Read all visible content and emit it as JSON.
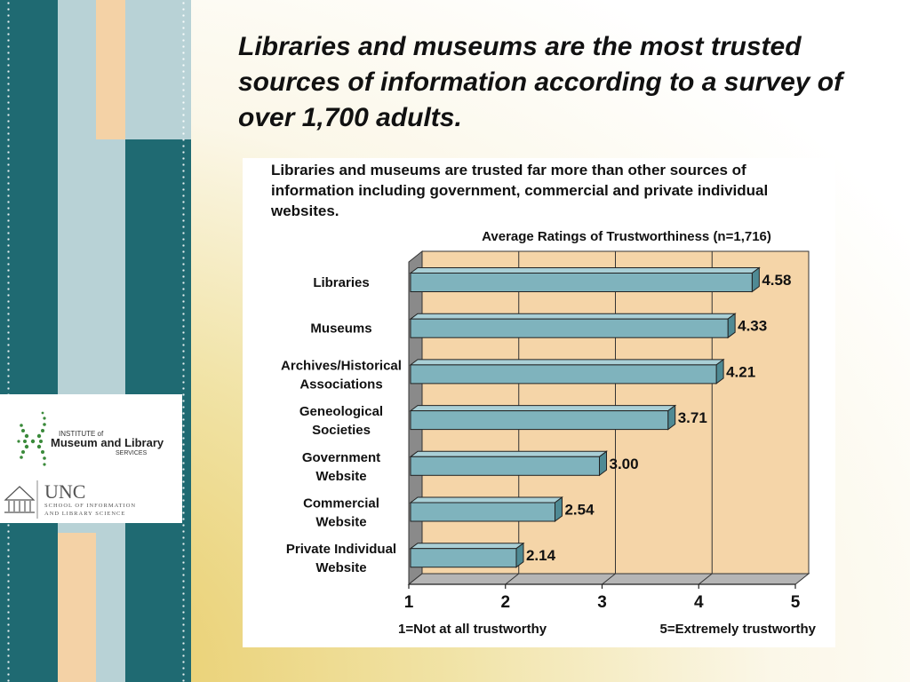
{
  "slide": {
    "title": "Libraries and museums are the most trusted sources of information according to a survey of over 1,700 adults."
  },
  "figure": {
    "caption": "Libraries and museums are trusted far more than other sources of information including government, commercial and private individual websites."
  },
  "logos": {
    "imls": {
      "line1": "INSTITUTE of",
      "line2": "Museum and Library",
      "line3": "SERVICES"
    },
    "unc": {
      "name": "UNC",
      "line1": "SCHOOL OF INFORMATION",
      "line2": "AND LIBRARY SCIENCE"
    }
  },
  "colors": {
    "teal": "#1f6a72",
    "light_blue": "#b8d2d6",
    "peach": "#f4d2a6",
    "plot_bg": "#f5d5a8",
    "bar": "#7fb3bd"
  },
  "chart_data": {
    "type": "bar",
    "orientation": "horizontal",
    "title": "Average Ratings of Trustworthiness (n=1,716)",
    "categories": [
      [
        "Libraries"
      ],
      [
        "Museums"
      ],
      [
        "Archives/Historical",
        "Associations"
      ],
      [
        "Geneological",
        "Societies"
      ],
      [
        "Government",
        "Website"
      ],
      [
        "Commercial",
        "Website"
      ],
      [
        "Private Individual",
        "Website"
      ]
    ],
    "values": [
      4.58,
      4.33,
      4.21,
      3.71,
      3.0,
      2.54,
      2.14
    ],
    "value_labels": [
      "4.58",
      "4.33",
      "4.21",
      "3.71",
      "3.00",
      "2.54",
      "2.14"
    ],
    "xlim": [
      1,
      5
    ],
    "xticks": [
      "1",
      "2",
      "3",
      "4",
      "5"
    ],
    "x_note_left": "1=Not at all trustworthy",
    "x_note_right": "5=Extremely trustworthy",
    "grid": true
  }
}
